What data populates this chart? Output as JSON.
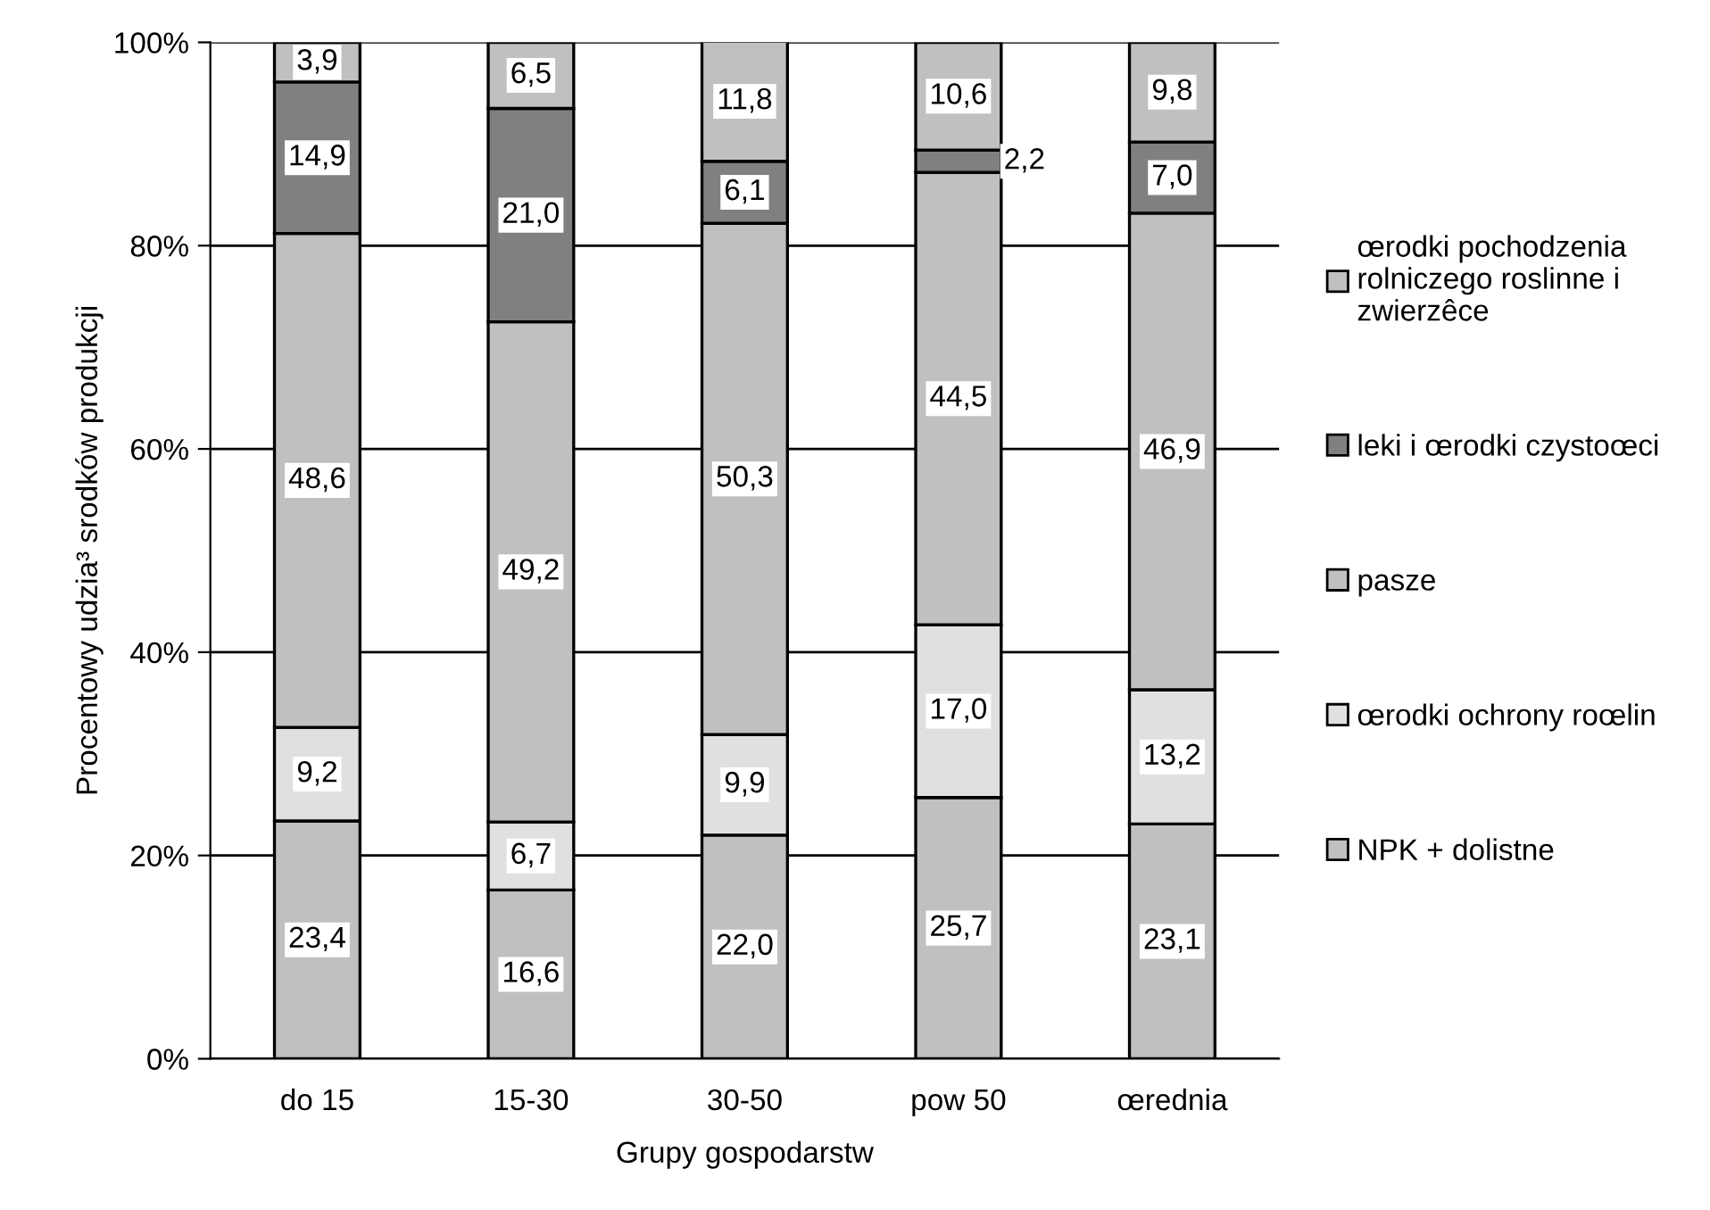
{
  "chart_data": {
    "type": "bar",
    "stacked": true,
    "xlabel": "Grupy gospodarstw",
    "ylabel": "Procentowy udzia³ srodków produkcji",
    "categories": [
      "do 15",
      "15-30",
      "30-50",
      "pow 50",
      "œrednia"
    ],
    "series": [
      {
        "name": "NPK + dolistne",
        "color": "#c0c0c0",
        "values": [
          23.4,
          16.6,
          22.0,
          25.7,
          23.1
        ],
        "value_labels": [
          "23,4",
          "16,6",
          "22,0",
          "25,7",
          "23,1"
        ]
      },
      {
        "name": "œrodki ochrony roœlin",
        "color": "#e0e0e0",
        "values": [
          9.2,
          6.7,
          9.9,
          17.0,
          13.2
        ],
        "value_labels": [
          "9,2",
          "6,7",
          "9,9",
          "17,0",
          "13,2"
        ]
      },
      {
        "name": "pasze",
        "color": "#c0c0c0",
        "values": [
          48.6,
          49.2,
          50.3,
          44.5,
          46.9
        ],
        "value_labels": [
          "48,6",
          "49,2",
          "50,3",
          "44,5",
          "46,9"
        ]
      },
      {
        "name": "leki i œrodki czystoœci",
        "color": "#808080",
        "values": [
          14.9,
          21.0,
          6.1,
          2.2,
          7.0
        ],
        "value_labels": [
          "14,9",
          "21,0",
          "6,1",
          "2,2",
          "7,0"
        ]
      },
      {
        "name": "œrodki pochodzenia\nrolniczego roslinne i\nzwierzêce",
        "color": "#c0c0c0",
        "values": [
          3.9,
          6.5,
          11.8,
          10.6,
          9.8
        ],
        "value_labels": [
          "3,9",
          "6,5",
          "11,8",
          "10,6",
          "9,8"
        ]
      }
    ],
    "ylim": [
      0,
      100
    ],
    "yticks": [
      {
        "value": 0,
        "label": "0%"
      },
      {
        "value": 20,
        "label": "20%"
      },
      {
        "value": 40,
        "label": "40%"
      },
      {
        "value": 60,
        "label": "60%"
      },
      {
        "value": 80,
        "label": "80%"
      },
      {
        "value": 100,
        "label": "100%"
      }
    ],
    "grid": "y",
    "legend": "right"
  }
}
